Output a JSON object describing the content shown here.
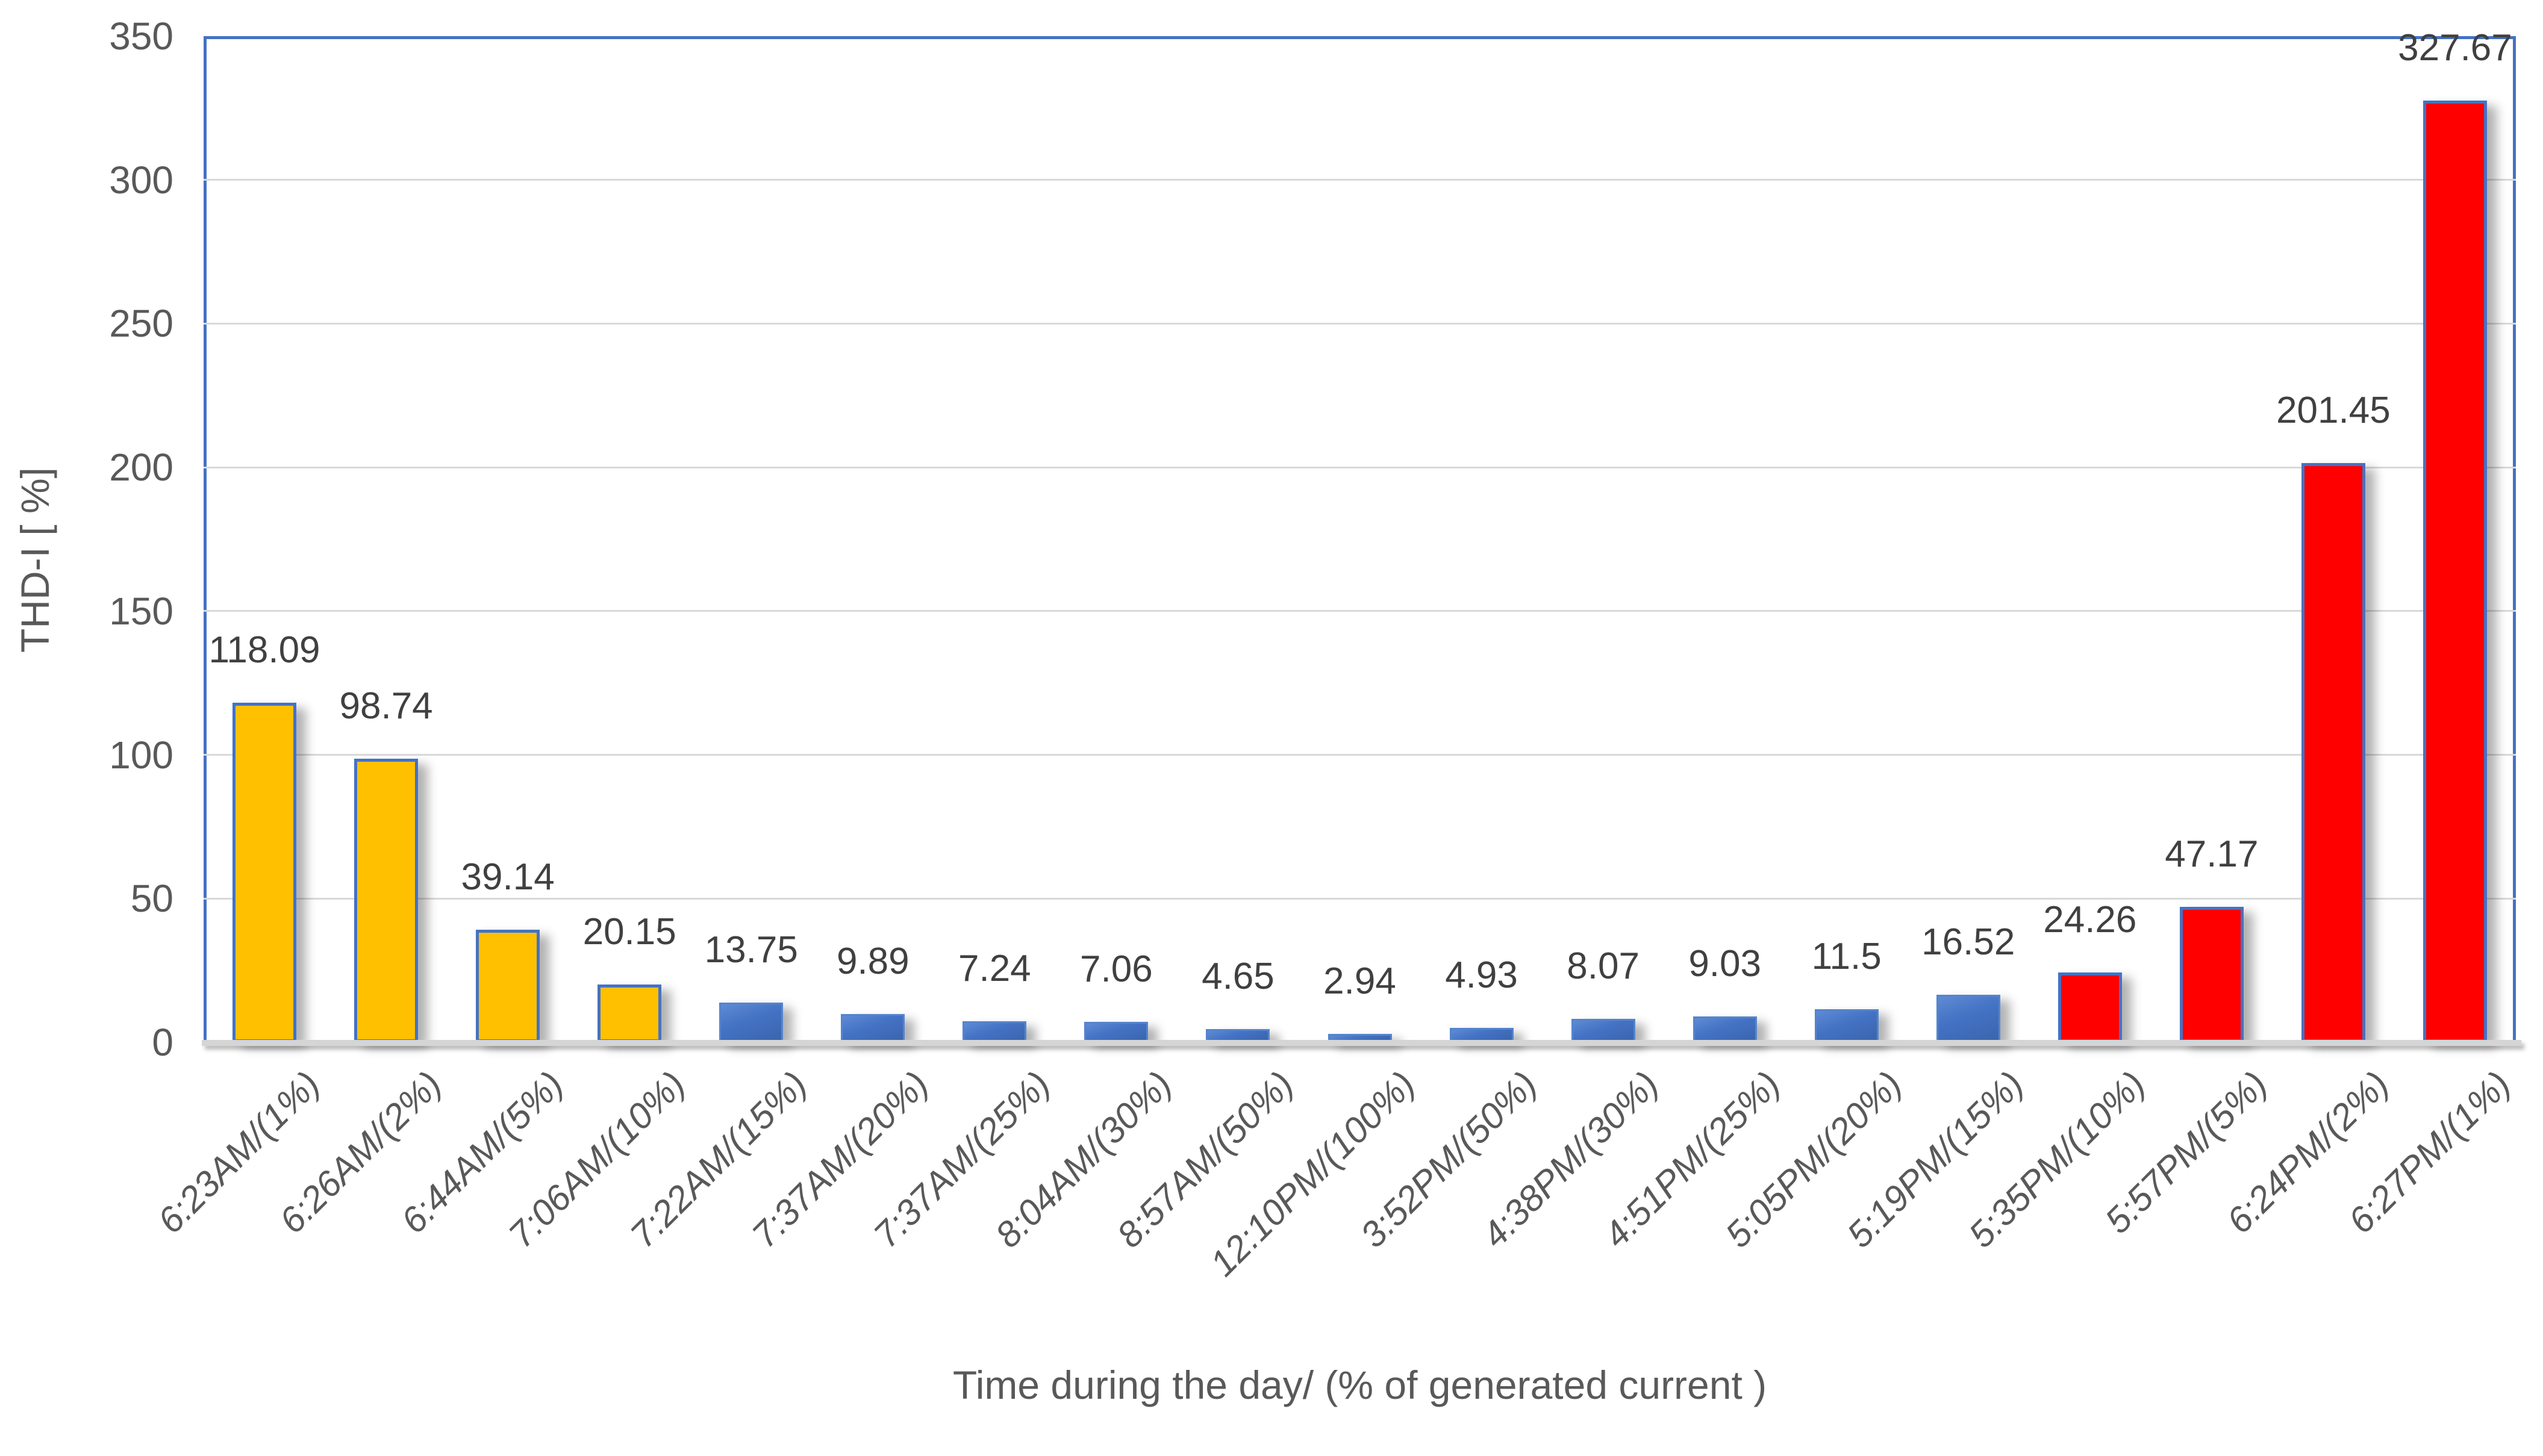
{
  "chart_data": {
    "type": "bar",
    "title": "",
    "xlabel": "Time during the day/ (% of generated current )",
    "ylabel": "THD-I [ %]",
    "ylim": [
      0,
      350
    ],
    "ytick_step": 50,
    "yticks": [
      "0",
      "50",
      "100",
      "150",
      "200",
      "250",
      "300",
      "350"
    ],
    "grid": "horizontal-gridlines-on",
    "legend": "none",
    "categories": [
      "6:23AM/(1%)",
      "6:26AM/(2%)",
      "6:44AM/(5%)",
      "7:06AM/(10%)",
      "7:22AM/(15%)",
      "7:37AM/(20%)",
      "7:37AM/(25%)",
      "8:04AM/(30%)",
      "8:57AM/(50%)",
      "12:10PM/(100%)",
      "3:52PM/(50%)",
      "4:38PM/(30%)",
      "4:51PM/(25%)",
      "5:05PM/(20%)",
      "5:19PM/(15%)",
      "5:35PM/(10%)",
      "5:57PM/(5%)",
      "6:24PM/(2%)",
      "6:27PM/(1%)"
    ],
    "values": [
      118.09,
      98.74,
      39.14,
      20.15,
      13.75,
      9.89,
      7.24,
      7.06,
      4.65,
      2.94,
      4.93,
      8.07,
      9.03,
      11.5,
      16.52,
      24.26,
      47.17,
      201.45,
      327.67
    ],
    "value_labels": [
      "118.09",
      "98.74",
      "39.14",
      "20.15",
      "13.75",
      "9.89",
      "7.24",
      "7.06",
      "4.65",
      "2.94",
      "4.93",
      "8.07",
      "9.03",
      "11.5",
      "16.52",
      "24.26",
      "47.17",
      "201.45",
      "327.67"
    ],
    "point_colors": [
      "gold",
      "gold",
      "gold",
      "gold",
      "blue",
      "blue",
      "blue",
      "blue",
      "blue",
      "blue",
      "blue",
      "blue",
      "blue",
      "blue",
      "blue",
      "red",
      "red",
      "red",
      "red"
    ],
    "palette": {
      "gold": "#FFC000",
      "blue": "#4472C4",
      "red": "#FF0000",
      "bar_border": "#4472C4",
      "plot_border": "#4472C4",
      "gridline": "#D9D9D9",
      "axis_line": "#D5D5D5",
      "axis_text": "#595959",
      "data_label_text": "#404040"
    }
  }
}
